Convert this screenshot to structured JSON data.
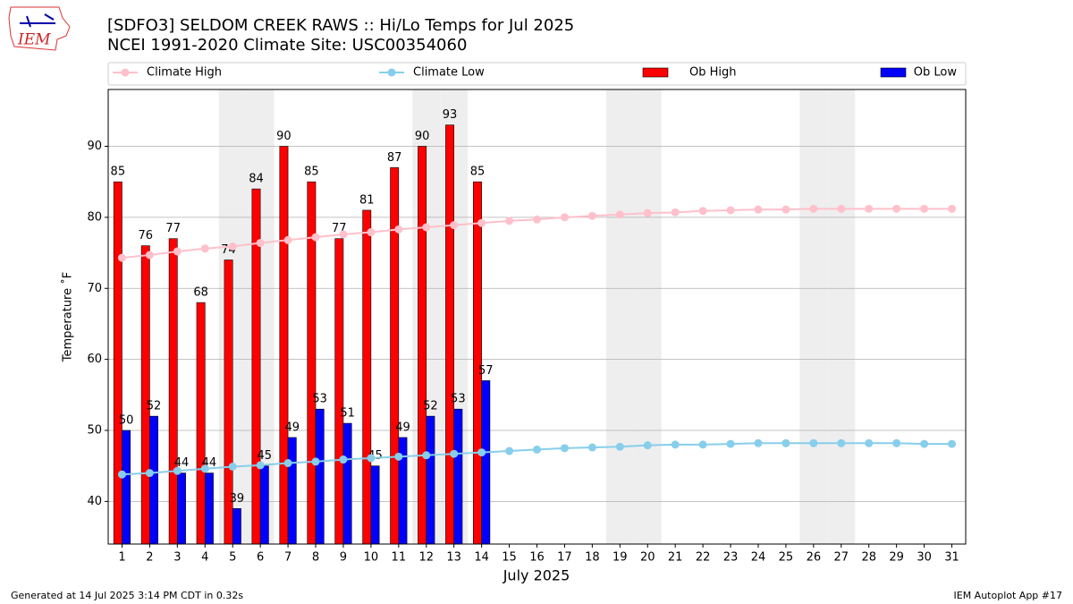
{
  "logo_text": "IEM",
  "footer_left": "Generated at 14 Jul 2025 3:14 PM CDT in 0.32s",
  "footer_right": "IEM Autoplot App #17",
  "chart_data": {
    "type": "bar",
    "title": "[SDFO3] SELDOM CREEK RAWS :: Hi/Lo Temps for Jul 2025",
    "subtitle": "NCEI 1991-2020 Climate Site: USC00354060",
    "ylabel": "Temperature ˚F",
    "xlabel": "July 2025",
    "x": [
      1,
      2,
      3,
      4,
      5,
      6,
      7,
      8,
      9,
      10,
      11,
      12,
      13,
      14,
      15,
      16,
      17,
      18,
      19,
      20,
      21,
      22,
      23,
      24,
      25,
      26,
      27,
      28,
      29,
      30,
      31
    ],
    "xlim": [
      0.5,
      31.5
    ],
    "xticks": [
      1,
      2,
      3,
      4,
      5,
      6,
      7,
      8,
      9,
      10,
      11,
      12,
      13,
      14,
      15,
      16,
      17,
      18,
      19,
      20,
      21,
      22,
      23,
      24,
      25,
      26,
      27,
      28,
      29,
      30,
      31
    ],
    "ylim": [
      34,
      98
    ],
    "yticks": [
      40,
      50,
      60,
      70,
      80,
      90
    ],
    "grid": true,
    "legend": "top",
    "shaded_days": [
      5,
      6,
      12,
      13,
      19,
      20,
      26,
      27
    ],
    "series": [
      {
        "name": "Climate High",
        "kind": "line",
        "color": "#ffc0cb",
        "values": [
          74.3,
          74.7,
          75.2,
          75.6,
          75.9,
          76.4,
          76.8,
          77.2,
          77.6,
          77.9,
          78.3,
          78.6,
          78.9,
          79.2,
          79.5,
          79.7,
          80.0,
          80.2,
          80.4,
          80.6,
          80.7,
          80.9,
          81.0,
          81.1,
          81.1,
          81.2,
          81.2,
          81.2,
          81.2,
          81.2,
          81.2
        ]
      },
      {
        "name": "Climate Low",
        "kind": "line",
        "color": "#87ceeb",
        "values": [
          43.8,
          44.0,
          44.3,
          44.6,
          44.9,
          45.1,
          45.4,
          45.6,
          45.9,
          46.1,
          46.3,
          46.5,
          46.7,
          46.9,
          47.1,
          47.3,
          47.5,
          47.6,
          47.7,
          47.9,
          48.0,
          48.0,
          48.1,
          48.2,
          48.2,
          48.2,
          48.2,
          48.2,
          48.2,
          48.1,
          48.1
        ]
      },
      {
        "name": "Ob High",
        "kind": "bar",
        "color": "#ff0000",
        "values": [
          85,
          76,
          77,
          68,
          74,
          84,
          90,
          85,
          77,
          81,
          87,
          90,
          93,
          85,
          null,
          null,
          null,
          null,
          null,
          null,
          null,
          null,
          null,
          null,
          null,
          null,
          null,
          null,
          null,
          null,
          null
        ]
      },
      {
        "name": "Ob Low",
        "kind": "bar",
        "color": "#0000ff",
        "values": [
          50,
          52,
          44,
          44,
          39,
          45,
          49,
          53,
          51,
          45,
          49,
          52,
          53,
          57,
          null,
          null,
          null,
          null,
          null,
          null,
          null,
          null,
          null,
          null,
          null,
          null,
          null,
          null,
          null,
          null,
          null
        ]
      }
    ]
  }
}
